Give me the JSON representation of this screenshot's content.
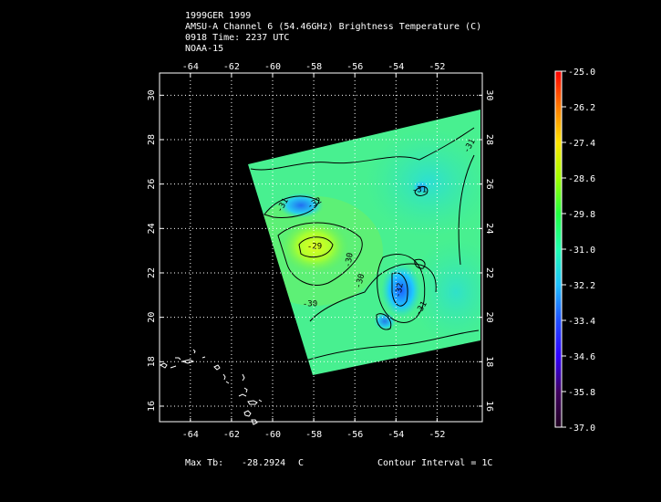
{
  "header": {
    "line1": "1999GER 1999",
    "line2": "AMSU-A Channel 6 (54.46GHz) Brightness Temperature (C)",
    "line3": "0918 Time: 2237 UTC",
    "line4": "NOAA-15"
  },
  "map": {
    "lon_ticks": [
      "-64",
      "-62",
      "-60",
      "-58",
      "-56",
      "-54",
      "-52"
    ],
    "lon_values": [
      -64,
      -62,
      -60,
      -58,
      -56,
      -54,
      -52
    ],
    "lat_ticks": [
      "30",
      "28",
      "26",
      "24",
      "22",
      "20",
      "18",
      "16"
    ],
    "lat_values": [
      30,
      28,
      26,
      24,
      22,
      20,
      18,
      16
    ],
    "lon_range": [
      -65.5,
      -49.8
    ],
    "lat_range": [
      15.3,
      31.0
    ],
    "grid": true,
    "contour_labels": [
      "-29",
      "-30",
      "-30",
      "-30",
      "-31",
      "-31",
      "-31",
      "-32",
      "-32",
      "-31"
    ],
    "colors": {
      "background": "#000000",
      "contour": "#000000",
      "coast": "#ffffff",
      "grid": "#ffffff"
    }
  },
  "colorbar": {
    "labels": [
      "-25.0",
      "-26.2",
      "-27.4",
      "-28.6",
      "-29.8",
      "-31.0",
      "-32.2",
      "-33.4",
      "-34.6",
      "-35.8",
      "-37.0"
    ],
    "min": -37.0,
    "max": -25.0,
    "stops": [
      "#ff0000",
      "#ff7a00",
      "#ffe400",
      "#a0ff00",
      "#20ff40",
      "#20ffb0",
      "#20c0ff",
      "#2050ff",
      "#3000ff",
      "#400060",
      "#200020"
    ]
  },
  "footer": {
    "max_label": "Max Tb:",
    "max_value": "-28.2924",
    "max_unit": "C",
    "contour_interval": "Contour Interval = 1C"
  }
}
